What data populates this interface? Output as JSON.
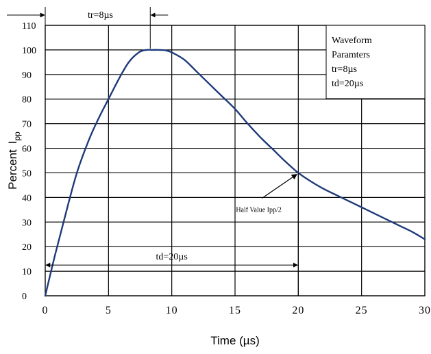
{
  "chart_data": {
    "type": "line",
    "xlabel": "Time (µs)",
    "ylabel_main": "Percent",
    "ylabel_symbol": "I",
    "ylabel_subscript": "pp",
    "xlim": [
      0,
      30
    ],
    "ylim": [
      0,
      110
    ],
    "grid": true,
    "x_ticks": [
      0,
      5,
      10,
      15,
      20,
      25,
      30
    ],
    "y_ticks": [
      0,
      10,
      20,
      30,
      40,
      50,
      60,
      70,
      80,
      90,
      100,
      110
    ],
    "series": [
      {
        "color": "#1f3a7a",
        "x": [
          0,
          0.7,
          1.5,
          2.5,
          3.5,
          4.3,
          5,
          5.8,
          6.6,
          7.4,
          8,
          8.5,
          9,
          9.5,
          10,
          11,
          12,
          13,
          14,
          15,
          16,
          17,
          18,
          19,
          20,
          21,
          22,
          23,
          24,
          25,
          26,
          27,
          28,
          29,
          30
        ],
        "y": [
          0,
          15,
          31,
          50,
          64,
          73,
          80,
          88,
          95,
          99,
          100,
          100,
          100,
          99.8,
          99,
          96,
          91,
          86,
          81,
          76,
          70,
          64.5,
          59.5,
          54.5,
          50,
          46.5,
          43.5,
          41,
          38.5,
          36,
          33.5,
          31,
          28.5,
          26,
          23
        ]
      }
    ],
    "annotations": {
      "tr": "tr=8µs",
      "tr_value": 8,
      "td": "td=20µs",
      "td_value": 20,
      "half_value": "Half Value Ipp/2",
      "half_value_point": [
        20,
        50
      ],
      "box_lines": [
        "Waveform",
        "Paramters",
        "tr=8µs",
        "td=20µs"
      ]
    }
  }
}
